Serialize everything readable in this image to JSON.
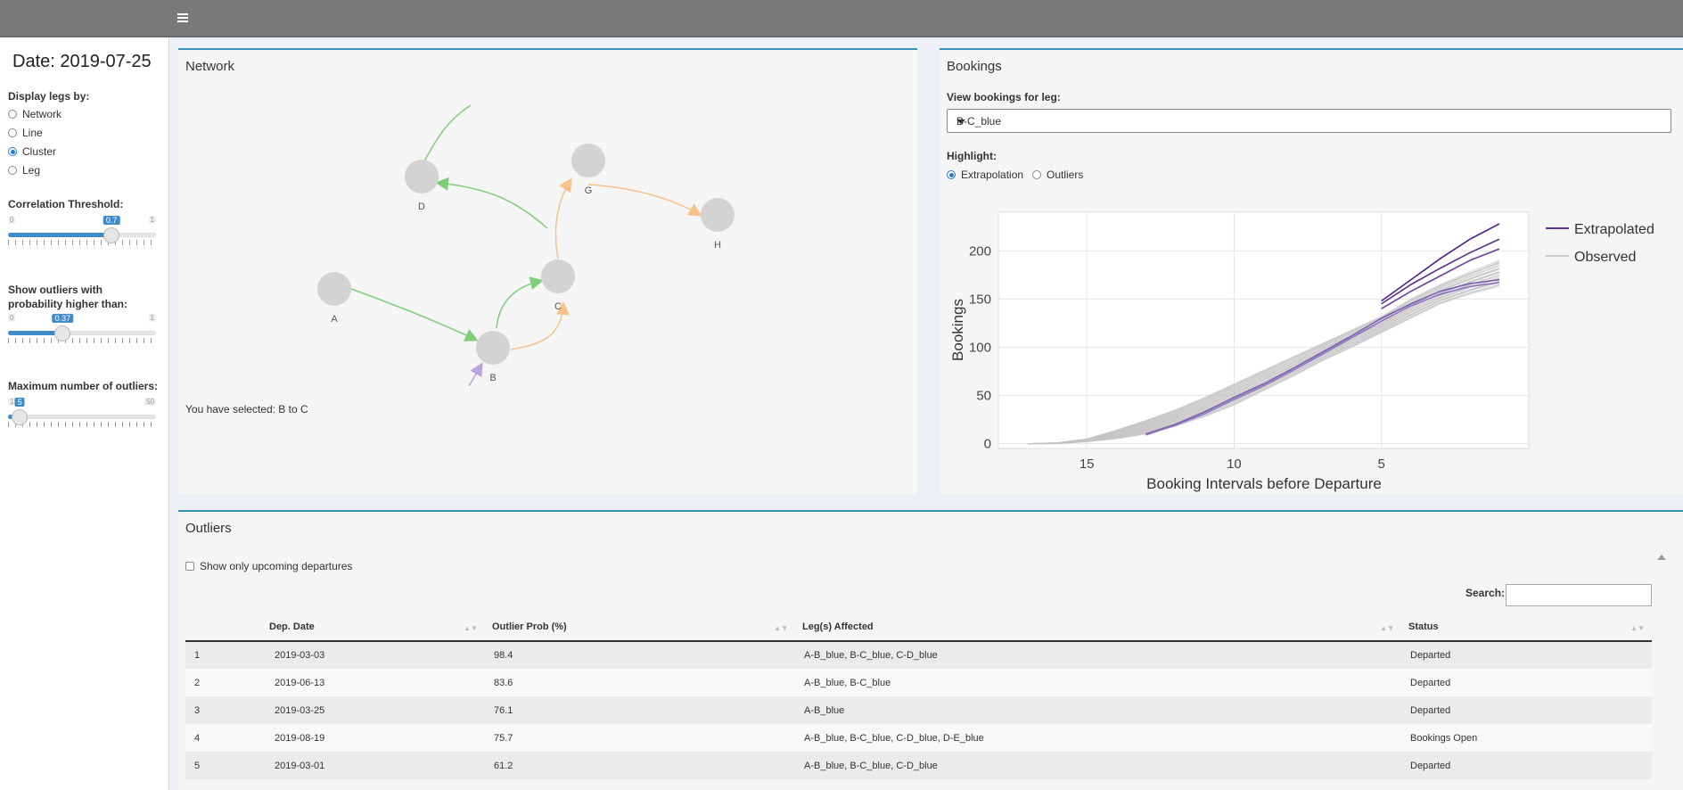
{
  "sidebar": {
    "date_label": "Date: 2019-07-25",
    "display_legs_label": "Display legs by:",
    "display_options": [
      {
        "label": "Network",
        "checked": false
      },
      {
        "label": "Line",
        "checked": false
      },
      {
        "label": "Cluster",
        "checked": true
      },
      {
        "label": "Leg",
        "checked": false
      }
    ],
    "correlation": {
      "label": "Correlation Threshold:",
      "min": "0",
      "max": "1",
      "value": "0.7",
      "fraction": 0.7
    },
    "outlier_prob": {
      "label": "Show outliers with probability higher than:",
      "min": "0",
      "max": "1",
      "value": "0.37",
      "fraction": 0.37
    },
    "max_outliers": {
      "label": "Maximum number of outliers:",
      "min": "1",
      "max": "50",
      "value": "5",
      "fraction": 0.08
    }
  },
  "network": {
    "title": "Network",
    "selected_text": "You have selected: B to C",
    "nodes": [
      "A",
      "B",
      "C",
      "D",
      "G",
      "H"
    ]
  },
  "bookings": {
    "title": "Bookings",
    "view_label": "View bookings for leg:",
    "selected_leg": "B-C_blue",
    "highlight_label": "Highlight:",
    "highlight_options": [
      {
        "label": "Extrapolation",
        "checked": true
      },
      {
        "label": "Outliers",
        "checked": false
      }
    ]
  },
  "chart_data": {
    "type": "line",
    "xlabel": "Booking Intervals before Departure",
    "ylabel": "Bookings",
    "x_ticks": [
      "15",
      "10",
      "5"
    ],
    "y_ticks": [
      "0",
      "50",
      "100",
      "150",
      "200"
    ],
    "xlim": [
      18,
      0
    ],
    "ylim": [
      -5,
      240
    ],
    "legend": [
      {
        "name": "Extrapolated",
        "color": "#5b2d8e"
      },
      {
        "name": "Observed",
        "color": "#cccccc"
      }
    ],
    "x": [
      17,
      16,
      15,
      14,
      13,
      12,
      11,
      10,
      9,
      8,
      7,
      6,
      5,
      4,
      3,
      2,
      1
    ],
    "observed_bands": {
      "low": [
        0,
        0,
        2,
        5,
        10,
        18,
        28,
        40,
        55,
        70,
        86,
        100,
        115,
        130,
        145,
        155,
        163
      ],
      "high": [
        0,
        1,
        5,
        14,
        24,
        35,
        48,
        62,
        76,
        90,
        104,
        118,
        132,
        150,
        165,
        178,
        190
      ]
    },
    "extrapolated_series": [
      {
        "name": "Extrapolated",
        "values": [
          null,
          null,
          null,
          null,
          null,
          null,
          null,
          null,
          null,
          null,
          null,
          null,
          148,
          170,
          192,
          212,
          228
        ]
      },
      {
        "name": "Extrapolated",
        "values": [
          null,
          null,
          null,
          null,
          null,
          null,
          null,
          null,
          null,
          null,
          null,
          null,
          145,
          165,
          182,
          198,
          212
        ]
      },
      {
        "name": "Extrapolated",
        "values": [
          null,
          null,
          null,
          null,
          null,
          null,
          null,
          null,
          null,
          null,
          null,
          null,
          140,
          158,
          174,
          190,
          202
        ]
      },
      {
        "name": "Extrapolated",
        "values": [
          null,
          null,
          null,
          null,
          10,
          20,
          33,
          48,
          62,
          78,
          95,
          112,
          130,
          145,
          158,
          166,
          170
        ]
      },
      {
        "name": "Extrapolated",
        "values": [
          null,
          null,
          null,
          null,
          9,
          19,
          31,
          46,
          60,
          76,
          93,
          110,
          127,
          143,
          155,
          163,
          167
        ]
      }
    ]
  },
  "outliers": {
    "title": "Outliers",
    "upcoming_label": "Show only upcoming departures",
    "search_label": "Search:",
    "columns": [
      "",
      "Dep. Date",
      "Outlier Prob (%)",
      "Leg(s) Affected",
      "Status"
    ],
    "rows": [
      [
        "1",
        "2019-03-03",
        "98.4",
        "A-B_blue, B-C_blue, C-D_blue",
        "Departed"
      ],
      [
        "2",
        "2019-06-13",
        "83.6",
        "A-B_blue, B-C_blue",
        "Departed"
      ],
      [
        "3",
        "2019-03-25",
        "76.1",
        "A-B_blue",
        "Departed"
      ],
      [
        "4",
        "2019-08-19",
        "75.7",
        "A-B_blue, B-C_blue, C-D_blue, D-E_blue",
        "Bookings Open"
      ],
      [
        "5",
        "2019-03-01",
        "61.2",
        "A-B_blue, B-C_blue, C-D_blue",
        "Departed"
      ]
    ]
  }
}
